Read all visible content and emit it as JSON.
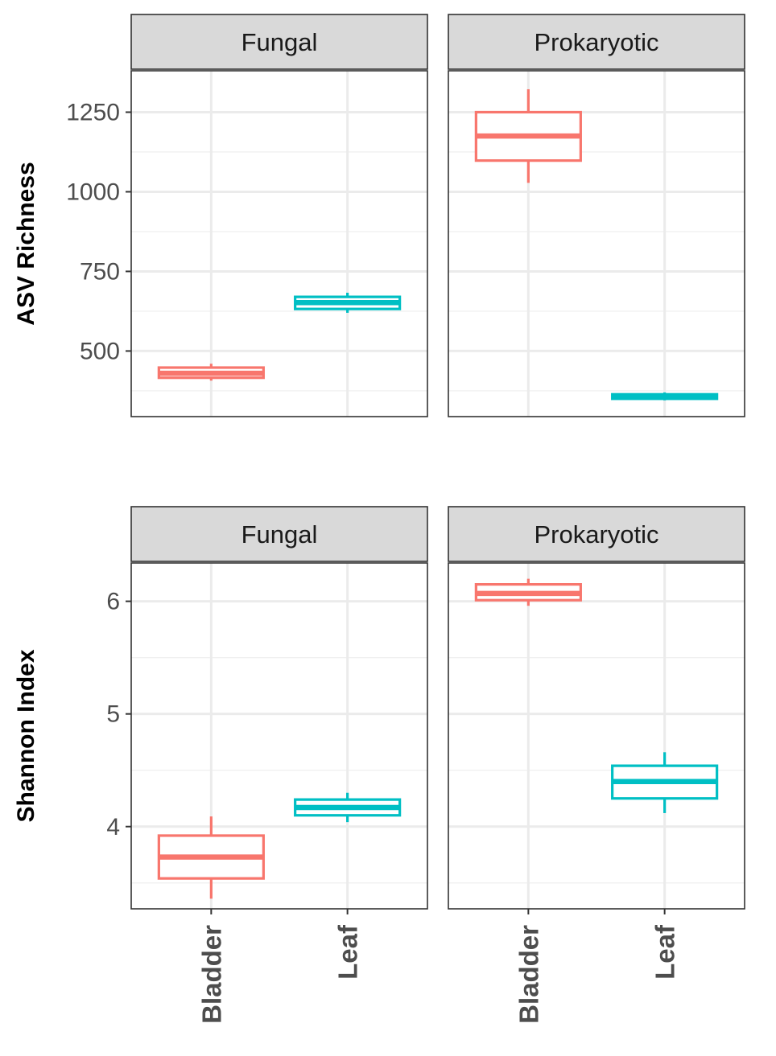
{
  "chart_data": {
    "type": "boxplot",
    "facets": [
      "Fungal",
      "Prokaryotic"
    ],
    "categories": [
      "Bladder",
      "Leaf"
    ],
    "colors": {
      "Bladder": "#F8766D",
      "Leaf": "#00BFC4"
    },
    "rows": [
      {
        "ylabel": "ASV Richness",
        "ylim": [
          294,
          1380
        ],
        "yticks": [
          500,
          750,
          1000,
          1250
        ],
        "ytick_labels": [
          "500",
          "750",
          "1000",
          "1250"
        ],
        "yminor": [
          375,
          625,
          875,
          1125
        ],
        "panels": [
          {
            "facet": "Fungal",
            "boxes": [
              {
                "category": "Bladder",
                "min": 407,
                "q1": 416,
                "median": 430,
                "q3": 448,
                "max": 460
              },
              {
                "category": "Leaf",
                "min": 620,
                "q1": 632,
                "median": 652,
                "q3": 670,
                "max": 683
              }
            ]
          },
          {
            "facet": "Prokaryotic",
            "boxes": [
              {
                "category": "Bladder",
                "min": 1028,
                "q1": 1098,
                "median": 1175,
                "q3": 1250,
                "max": 1322
              },
              {
                "category": "Leaf",
                "min": 345,
                "q1": 350,
                "median": 356,
                "q3": 364,
                "max": 370
              }
            ]
          }
        ]
      },
      {
        "ylabel": "Shannon Index",
        "ylim": [
          3.27,
          6.34
        ],
        "yticks": [
          4,
          5,
          6
        ],
        "ytick_labels": [
          "4",
          "5",
          "6"
        ],
        "yminor": [
          3.5,
          4.5,
          5.5
        ],
        "panels": [
          {
            "facet": "Fungal",
            "boxes": [
              {
                "category": "Bladder",
                "min": 3.36,
                "q1": 3.54,
                "median": 3.73,
                "q3": 3.92,
                "max": 4.09
              },
              {
                "category": "Leaf",
                "min": 4.04,
                "q1": 4.1,
                "median": 4.17,
                "q3": 4.24,
                "max": 4.3
              }
            ]
          },
          {
            "facet": "Prokaryotic",
            "boxes": [
              {
                "category": "Bladder",
                "min": 5.96,
                "q1": 6.01,
                "median": 6.07,
                "q3": 6.15,
                "max": 6.2
              },
              {
                "category": "Leaf",
                "min": 4.12,
                "q1": 4.25,
                "median": 4.4,
                "q3": 4.54,
                "max": 4.66
              }
            ]
          }
        ]
      }
    ]
  }
}
